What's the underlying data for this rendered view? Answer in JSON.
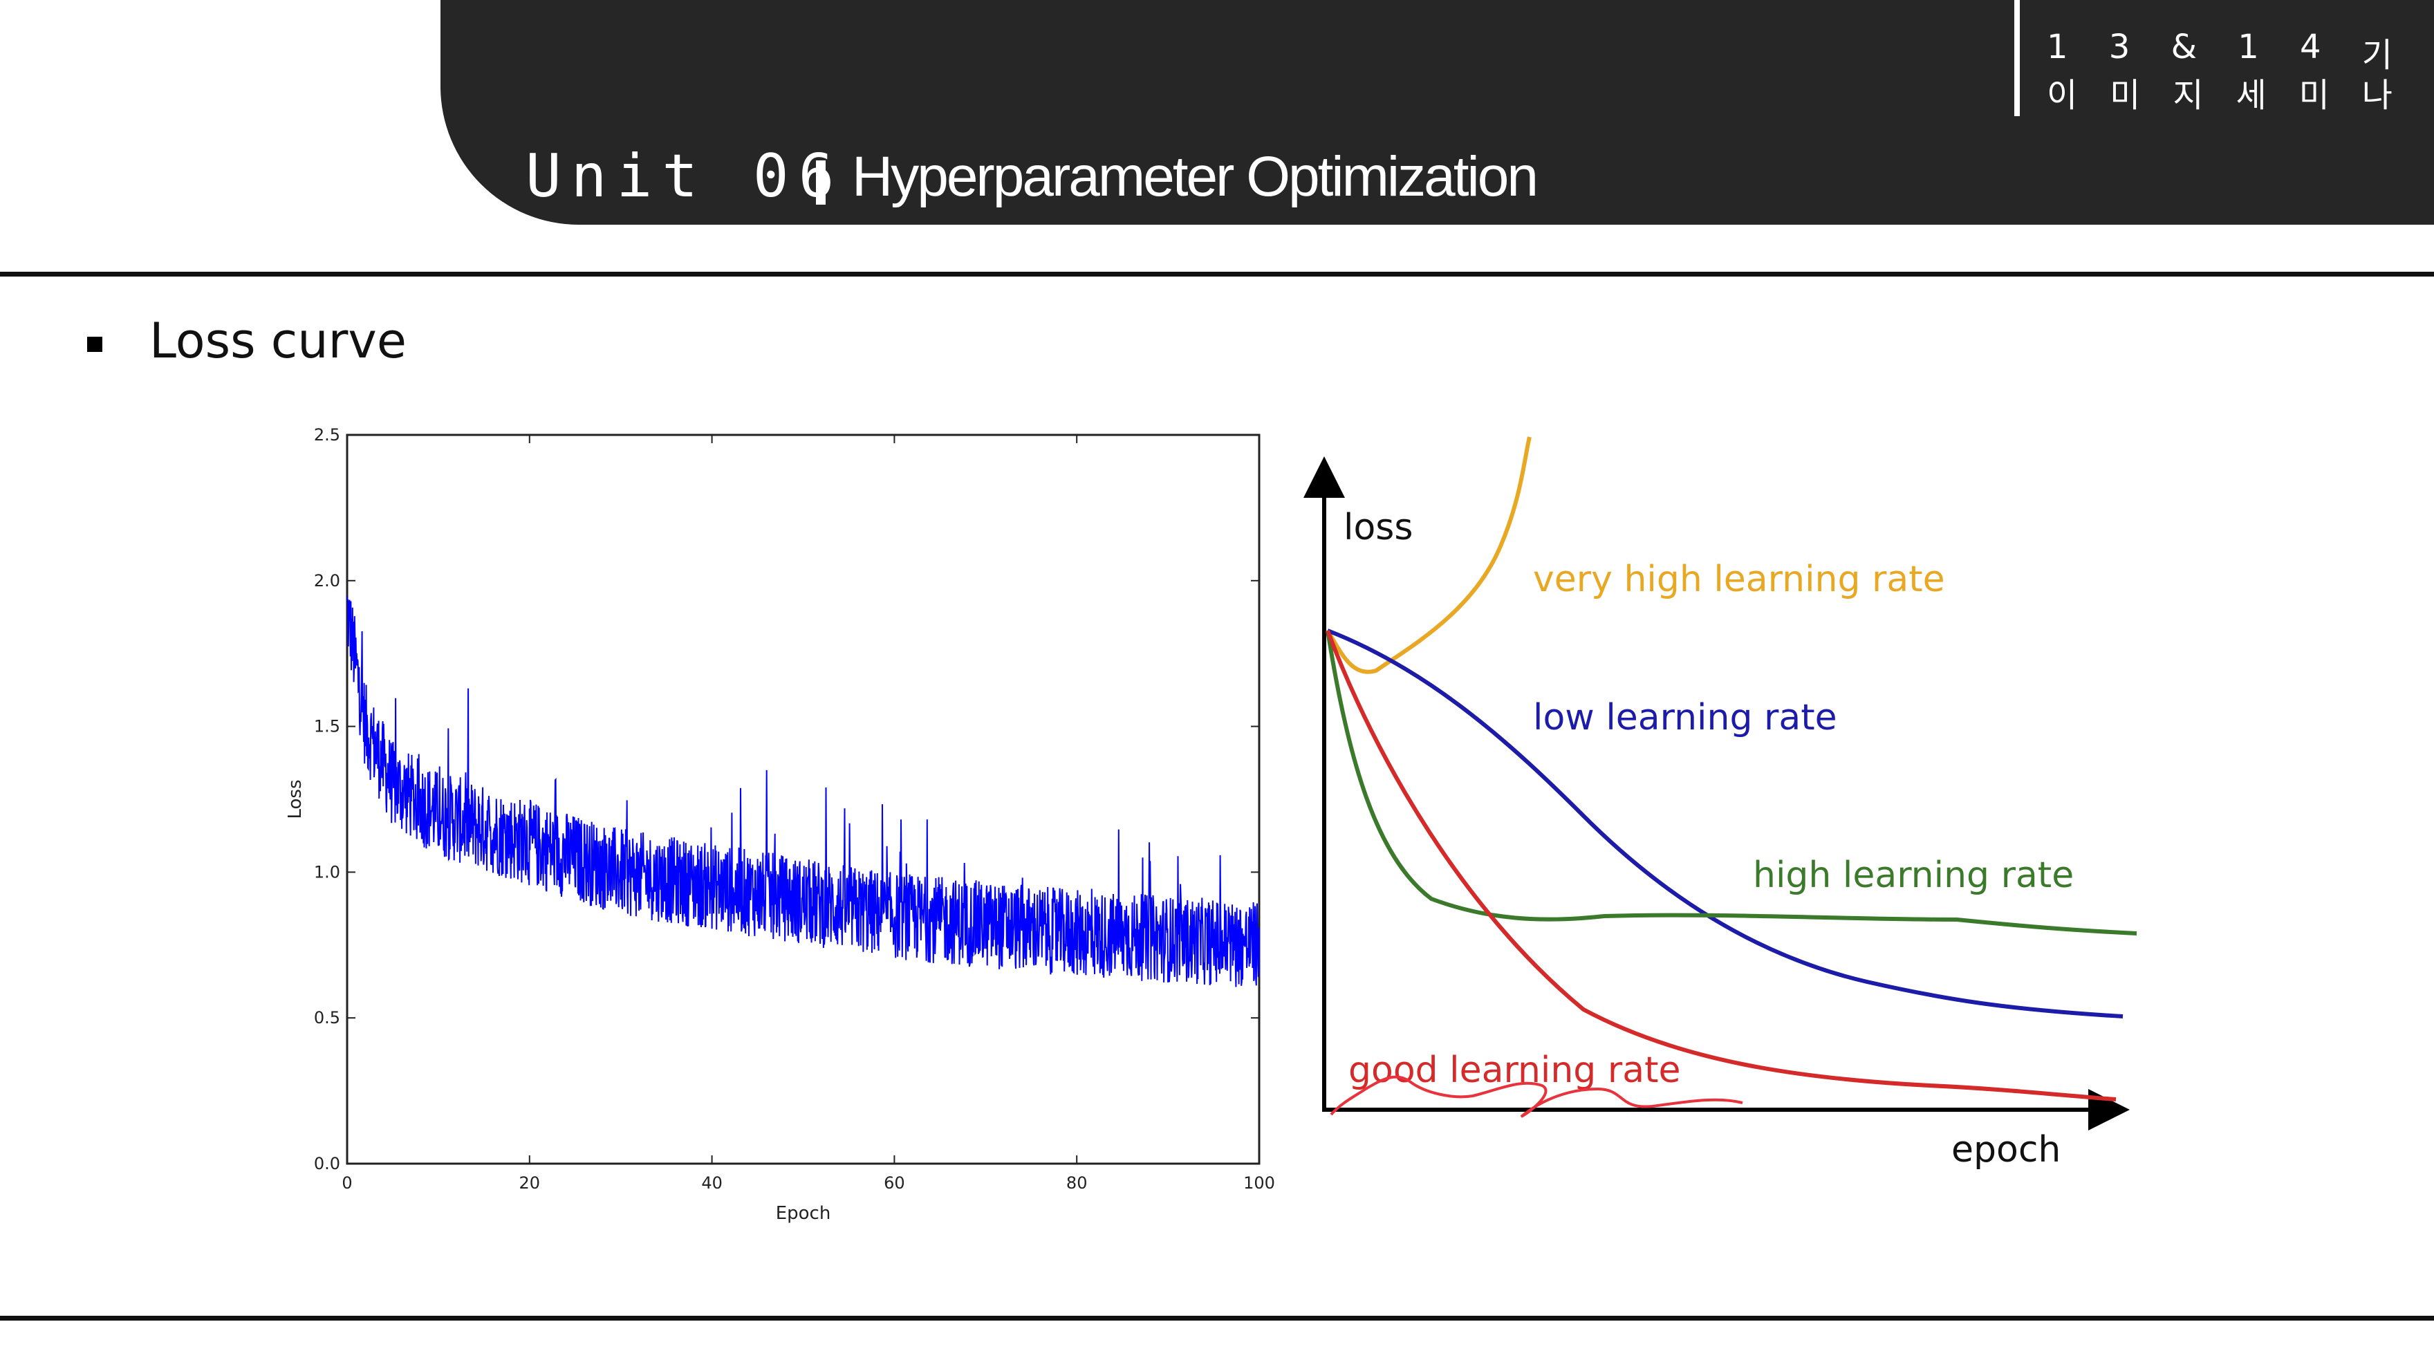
{
  "header": {
    "tag_line1": [
      "1",
      "3",
      "&",
      "1",
      "4",
      "기"
    ],
    "tag_line2": [
      "이",
      "미",
      "지",
      "세",
      "미",
      "나"
    ],
    "unit_label": "Unit 06",
    "topic": "Hyperparameter Optimization",
    "background_color": "#262626"
  },
  "section": {
    "title": "Loss curve"
  },
  "chart_data": [
    {
      "type": "line",
      "xlabel": "Epoch",
      "ylabel": "Loss",
      "xlim": [
        0,
        100
      ],
      "ylim": [
        0,
        2.5
      ],
      "x_ticks": [
        "0",
        "20",
        "40",
        "60",
        "80",
        "100"
      ],
      "y_ticks": [
        "0.0",
        "0.5",
        "1.0",
        "1.5",
        "2.0",
        "2.5"
      ],
      "grid": false,
      "series": [
        {
          "color": "#0000ff",
          "noisy": true,
          "trend": [
            [
              0,
              1.9
            ],
            [
              2,
              1.5
            ],
            [
              5,
              1.3
            ],
            [
              10,
              1.2
            ],
            [
              20,
              1.1
            ],
            [
              30,
              1.0
            ],
            [
              40,
              0.95
            ],
            [
              50,
              0.9
            ],
            [
              60,
              0.85
            ],
            [
              70,
              0.82
            ],
            [
              80,
              0.79
            ],
            [
              90,
              0.77
            ],
            [
              100,
              0.75
            ]
          ]
        }
      ]
    },
    {
      "type": "line",
      "xlabel": "epoch",
      "ylabel": "loss",
      "series": [
        {
          "name": "very high learning rate",
          "color": "#e8a824"
        },
        {
          "name": "low learning rate",
          "color": "#1c1ca8"
        },
        {
          "name": "high learning rate",
          "color": "#3a7a2a"
        },
        {
          "name": "good learning rate",
          "color": "#d42a2a"
        }
      ]
    }
  ]
}
